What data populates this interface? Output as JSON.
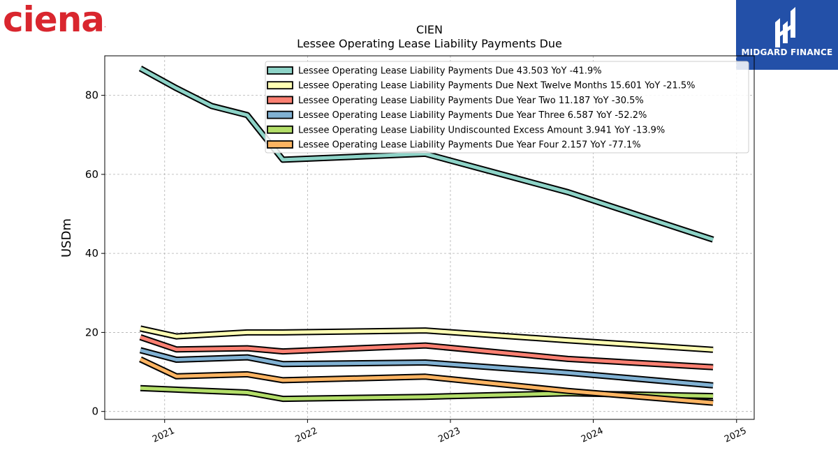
{
  "brand": {
    "logo_text": "ciena",
    "logo_color": "#d9262e",
    "reg_mark": "."
  },
  "watermark": {
    "text": "MIDGARD FINANCE",
    "bg_color": "#2350a8"
  },
  "chart_data": {
    "type": "line",
    "title": "CIEN",
    "subtitle": "Lessee Operating Lease Liability Payments Due",
    "xlabel": "",
    "ylabel": "USDm",
    "ylim": [
      -2,
      90
    ],
    "xlim": [
      "2020-08-01",
      "2025-02-15"
    ],
    "y_ticks": [
      0,
      20,
      40,
      60,
      80
    ],
    "x_ticks": [
      "2021",
      "2022",
      "2023",
      "2024",
      "2025"
    ],
    "grid": true,
    "legend_position": "top-right",
    "series": [
      {
        "name": "Lessee Operating Lease Liability Payments Due  43.503 YoY -41.9%",
        "color": "#8dd3c7",
        "x": [
          "2020-10-31",
          "2021-01-31",
          "2021-05-01",
          "2021-07-31",
          "2021-10-30",
          "2022-10-29",
          "2023-10-28",
          "2024-11-02"
        ],
        "y": [
          86.8,
          81.8,
          77.3,
          75.0,
          63.7,
          65.2,
          55.5,
          43.5
        ]
      },
      {
        "name": "Lessee Operating Lease Liability Payments Due Next Twelve Months  15.601 YoY -21.5%",
        "color": "#ffffb3",
        "x": [
          "2020-10-31",
          "2021-01-31",
          "2021-07-31",
          "2021-10-30",
          "2022-10-29",
          "2023-10-28",
          "2024-11-02"
        ],
        "y": [
          21.0,
          19.0,
          20.0,
          20.0,
          20.5,
          18.0,
          15.6
        ]
      },
      {
        "name": "Lessee Operating Lease Liability Payments Due Year Two  11.187 YoY -30.5%",
        "color": "#fb8072",
        "x": [
          "2020-10-31",
          "2021-01-31",
          "2021-07-31",
          "2021-10-30",
          "2022-10-29",
          "2023-10-28",
          "2024-11-02"
        ],
        "y": [
          18.8,
          15.7,
          16.0,
          15.2,
          16.7,
          13.3,
          11.2
        ]
      },
      {
        "name": "Lessee Operating Lease Liability Payments Due Year Three  6.587 YoY -52.2%",
        "color": "#80b1d3",
        "x": [
          "2020-10-31",
          "2021-01-31",
          "2021-07-31",
          "2021-10-30",
          "2022-10-29",
          "2023-10-28",
          "2024-11-02"
        ],
        "y": [
          15.5,
          13.1,
          13.7,
          12.0,
          12.4,
          9.8,
          6.6
        ]
      },
      {
        "name": "Lessee Operating Lease Liability Undiscounted Excess Amount  3.941 YoY -13.9%",
        "color": "#b3de69",
        "x": [
          "2020-10-31",
          "2021-07-31",
          "2021-10-30",
          "2022-10-29",
          "2023-10-28",
          "2024-11-02"
        ],
        "y": [
          5.9,
          4.8,
          3.2,
          3.7,
          4.6,
          3.9
        ]
      },
      {
        "name": "Lessee Operating Lease Liability Payments Due Year Four  2.157 YoY -77.1%",
        "color": "#fdb462",
        "x": [
          "2020-10-31",
          "2021-01-31",
          "2021-07-31",
          "2021-10-30",
          "2022-10-29",
          "2023-10-28",
          "2024-11-02"
        ],
        "y": [
          13.2,
          8.9,
          9.4,
          7.9,
          8.8,
          5.2,
          2.2
        ]
      }
    ]
  }
}
